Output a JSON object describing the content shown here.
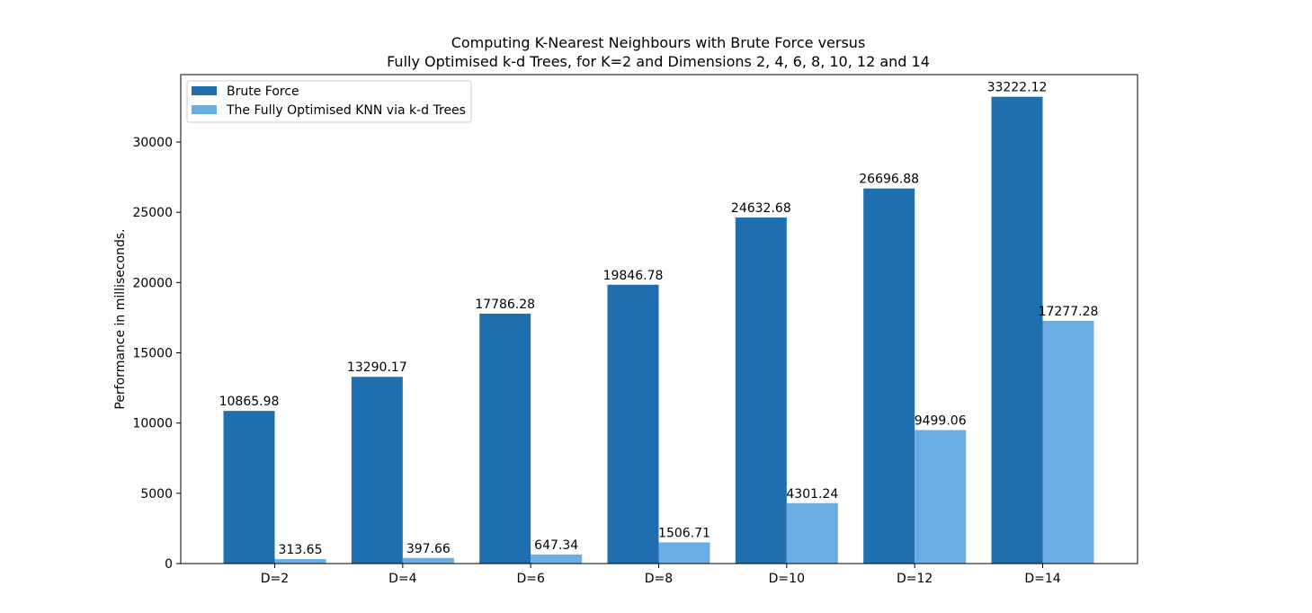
{
  "chart_data": {
    "type": "bar",
    "title_line1": "Computing K-Nearest Neighbours with Brute Force versus",
    "title_line2": "Fully Optimised k-d Trees, for K=2 and Dimensions 2, 4, 6, 8, 10, 12 and 14",
    "xlabel": "",
    "ylabel": "Performance in milliseconds.",
    "ylim": [
      0,
      34800
    ],
    "yticks": [
      0,
      5000,
      10000,
      15000,
      20000,
      25000,
      30000
    ],
    "categories": [
      "D=2",
      "D=4",
      "D=6",
      "D=8",
      "D=10",
      "D=12",
      "D=14"
    ],
    "series": [
      {
        "name": "Brute Force",
        "color": "#1f6eb0",
        "values": [
          10865.98,
          13290.17,
          17786.28,
          19846.78,
          24632.68,
          26696.88,
          33222.12
        ],
        "labels": [
          "10865.98",
          "13290.17",
          "17786.28",
          "19846.78",
          "24632.68",
          "26696.88",
          "33222.12"
        ]
      },
      {
        "name": "The Fully Optimised KNN via k-d Trees",
        "color": "#6aade4",
        "values": [
          313.65,
          397.66,
          647.34,
          1506.71,
          4301.24,
          9499.06,
          17277.28
        ],
        "labels": [
          "313.65",
          "397.66",
          "647.34",
          "1506.71",
          "4301.24",
          "9499.06",
          "17277.28"
        ]
      }
    ],
    "legend_position": "top-left",
    "grid": false
  }
}
